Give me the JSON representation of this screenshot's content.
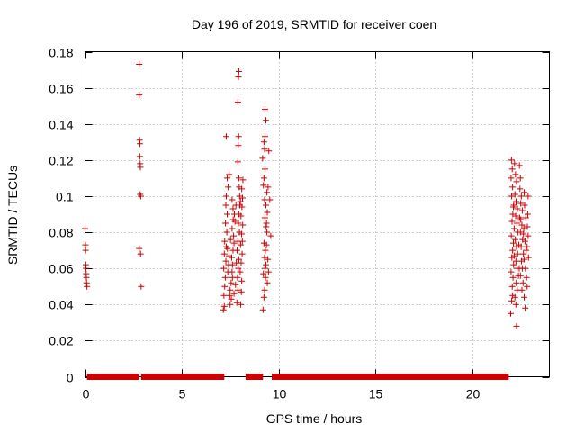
{
  "chart_data": {
    "type": "scatter",
    "title": "Day 196 of 2019, SRMTID for receiver coen",
    "xlabel": "GPS time / hours",
    "ylabel": "SRMTID / TECUs",
    "xlim": [
      0,
      24
    ],
    "ylim": [
      0,
      0.18
    ],
    "grid": true,
    "marker": "+",
    "color": "#cc0000",
    "xticks": [
      {
        "value": 0,
        "label": "0"
      },
      {
        "value": 5,
        "label": "5"
      },
      {
        "value": 10,
        "label": "10"
      },
      {
        "value": 15,
        "label": "15"
      },
      {
        "value": 20,
        "label": "20"
      }
    ],
    "yticks": [
      {
        "value": 0,
        "label": "0"
      },
      {
        "value": 0.02,
        "label": "0.02"
      },
      {
        "value": 0.04,
        "label": "0.04"
      },
      {
        "value": 0.06,
        "label": "0.06"
      },
      {
        "value": 0.08,
        "label": "0.08"
      },
      {
        "value": 0.1,
        "label": "0.1"
      },
      {
        "value": 0.12,
        "label": "0.12"
      },
      {
        "value": 0.14,
        "label": "0.14"
      },
      {
        "value": 0.16,
        "label": "0.16"
      },
      {
        "value": 0.18,
        "label": "0.18"
      }
    ],
    "zero_segments": [
      [
        0.1,
        2.8
      ],
      [
        2.9,
        7.2
      ],
      [
        8.3,
        9.2
      ],
      [
        9.65,
        21.9
      ]
    ],
    "series": [
      {
        "name": "SRMTID",
        "points": [
          [
            0.0,
            0.082
          ],
          [
            0.02,
            0.073
          ],
          [
            0.03,
            0.07
          ],
          [
            0.04,
            0.062
          ],
          [
            0.05,
            0.06
          ],
          [
            0.06,
            0.057
          ],
          [
            0.07,
            0.055
          ],
          [
            0.08,
            0.052
          ],
          [
            0.1,
            0.05
          ],
          [
            2.8,
            0.173
          ],
          [
            2.8,
            0.156
          ],
          [
            2.82,
            0.131
          ],
          [
            2.84,
            0.129
          ],
          [
            2.83,
            0.122
          ],
          [
            2.85,
            0.118
          ],
          [
            2.86,
            0.116
          ],
          [
            2.85,
            0.101
          ],
          [
            2.88,
            0.1
          ],
          [
            2.8,
            0.071
          ],
          [
            2.87,
            0.068
          ],
          [
            2.9,
            0.05
          ],
          [
            7.15,
            0.037
          ],
          [
            7.2,
            0.039
          ],
          [
            7.18,
            0.045
          ],
          [
            7.22,
            0.05
          ],
          [
            7.25,
            0.055
          ],
          [
            7.17,
            0.06
          ],
          [
            7.28,
            0.064
          ],
          [
            7.2,
            0.068
          ],
          [
            7.3,
            0.072
          ],
          [
            7.22,
            0.075
          ],
          [
            7.33,
            0.08
          ],
          [
            7.26,
            0.085
          ],
          [
            7.35,
            0.09
          ],
          [
            7.28,
            0.095
          ],
          [
            7.3,
            0.1
          ],
          [
            7.4,
            0.105
          ],
          [
            7.35,
            0.11
          ],
          [
            7.45,
            0.112
          ],
          [
            7.3,
            0.133
          ],
          [
            7.5,
            0.04
          ],
          [
            7.5,
            0.048
          ],
          [
            7.55,
            0.052
          ],
          [
            7.6,
            0.058
          ],
          [
            7.62,
            0.062
          ],
          [
            7.58,
            0.066
          ],
          [
            7.65,
            0.07
          ],
          [
            7.7,
            0.074
          ],
          [
            7.68,
            0.078
          ],
          [
            7.6,
            0.082
          ],
          [
            7.75,
            0.086
          ],
          [
            7.72,
            0.09
          ],
          [
            7.8,
            0.095
          ],
          [
            7.66,
            0.087
          ],
          [
            7.52,
            0.076
          ],
          [
            7.44,
            0.067
          ],
          [
            7.38,
            0.058
          ],
          [
            7.48,
            0.045
          ],
          [
            7.56,
            0.043
          ],
          [
            7.85,
            0.041
          ],
          [
            7.9,
            0.048
          ],
          [
            7.88,
            0.055
          ],
          [
            7.92,
            0.06
          ],
          [
            7.95,
            0.065
          ],
          [
            7.86,
            0.07
          ],
          [
            7.9,
            0.075
          ],
          [
            7.98,
            0.08
          ],
          [
            7.93,
            0.085
          ],
          [
            7.96,
            0.09
          ],
          [
            8.0,
            0.095
          ],
          [
            7.99,
            0.1
          ],
          [
            7.97,
            0.105
          ],
          [
            7.95,
            0.11
          ],
          [
            7.9,
            0.119
          ],
          [
            7.92,
            0.128
          ],
          [
            7.94,
            0.133
          ],
          [
            7.9,
            0.152
          ],
          [
            7.93,
            0.166
          ],
          [
            7.95,
            0.169
          ],
          [
            8.05,
            0.04
          ],
          [
            8.08,
            0.047
          ],
          [
            8.1,
            0.053
          ],
          [
            8.02,
            0.058
          ],
          [
            8.07,
            0.063
          ],
          [
            8.12,
            0.068
          ],
          [
            8.04,
            0.073
          ],
          [
            8.09,
            0.079
          ],
          [
            8.15,
            0.084
          ],
          [
            8.06,
            0.089
          ],
          [
            8.11,
            0.094
          ],
          [
            8.14,
            0.099
          ],
          [
            8.1,
            0.104
          ],
          [
            8.16,
            0.109
          ],
          [
            8.03,
            0.097
          ],
          [
            8.13,
            0.075
          ],
          [
            7.82,
            0.063
          ],
          [
            7.78,
            0.051
          ],
          [
            7.7,
            0.046
          ],
          [
            7.62,
            0.055
          ],
          [
            7.42,
            0.062
          ],
          [
            7.36,
            0.071
          ],
          [
            7.6,
            0.098
          ],
          [
            7.65,
            0.093
          ],
          [
            9.2,
            0.037
          ],
          [
            9.25,
            0.044
          ],
          [
            9.28,
            0.048
          ],
          [
            9.22,
            0.057
          ],
          [
            9.3,
            0.06
          ],
          [
            9.35,
            0.062
          ],
          [
            9.28,
            0.066
          ],
          [
            9.32,
            0.07
          ],
          [
            9.38,
            0.073
          ],
          [
            9.25,
            0.074
          ],
          [
            9.4,
            0.08
          ],
          [
            9.36,
            0.083
          ],
          [
            9.3,
            0.088
          ],
          [
            9.42,
            0.091
          ],
          [
            9.35,
            0.095
          ],
          [
            9.28,
            0.098
          ],
          [
            9.4,
            0.102
          ],
          [
            9.22,
            0.106
          ],
          [
            9.25,
            0.11
          ],
          [
            9.3,
            0.115
          ],
          [
            9.18,
            0.121
          ],
          [
            9.28,
            0.126
          ],
          [
            9.25,
            0.13
          ],
          [
            9.3,
            0.133
          ],
          [
            9.35,
            0.142
          ],
          [
            9.3,
            0.148
          ],
          [
            9.5,
            0.125
          ],
          [
            9.55,
            0.098
          ],
          [
            9.6,
            0.078
          ],
          [
            9.45,
            0.065
          ],
          [
            9.48,
            0.058
          ],
          [
            9.42,
            0.052
          ],
          [
            9.38,
            0.085
          ],
          [
            9.33,
            0.055
          ],
          [
            9.46,
            0.105
          ],
          [
            22.0,
            0.035
          ],
          [
            22.05,
            0.042
          ],
          [
            22.1,
            0.045
          ],
          [
            22.08,
            0.05
          ],
          [
            22.12,
            0.055
          ],
          [
            22.02,
            0.058
          ],
          [
            22.15,
            0.062
          ],
          [
            22.06,
            0.066
          ],
          [
            22.1,
            0.07
          ],
          [
            22.14,
            0.074
          ],
          [
            22.03,
            0.078
          ],
          [
            22.18,
            0.082
          ],
          [
            22.07,
            0.086
          ],
          [
            22.11,
            0.09
          ],
          [
            22.16,
            0.095
          ],
          [
            22.05,
            0.1
          ],
          [
            22.1,
            0.105
          ],
          [
            22.02,
            0.11
          ],
          [
            22.08,
            0.115
          ],
          [
            22.04,
            0.12
          ],
          [
            22.2,
            0.118
          ],
          [
            22.25,
            0.112
          ],
          [
            22.3,
            0.108
          ],
          [
            22.22,
            0.101
          ],
          [
            22.28,
            0.097
          ],
          [
            22.35,
            0.093
          ],
          [
            22.26,
            0.089
          ],
          [
            22.32,
            0.085
          ],
          [
            22.38,
            0.08
          ],
          [
            22.24,
            0.076
          ],
          [
            22.3,
            0.072
          ],
          [
            22.36,
            0.068
          ],
          [
            22.27,
            0.064
          ],
          [
            22.33,
            0.06
          ],
          [
            22.4,
            0.056
          ],
          [
            22.29,
            0.052
          ],
          [
            22.34,
            0.048
          ],
          [
            22.22,
            0.044
          ],
          [
            22.27,
            0.04
          ],
          [
            22.3,
            0.028
          ],
          [
            22.45,
            0.117
          ],
          [
            22.5,
            0.11
          ],
          [
            22.48,
            0.104
          ],
          [
            22.55,
            0.1
          ],
          [
            22.52,
            0.096
          ],
          [
            22.6,
            0.092
          ],
          [
            22.46,
            0.088
          ],
          [
            22.58,
            0.084
          ],
          [
            22.5,
            0.08
          ],
          [
            22.62,
            0.076
          ],
          [
            22.54,
            0.072
          ],
          [
            22.66,
            0.068
          ],
          [
            22.56,
            0.064
          ],
          [
            22.6,
            0.06
          ],
          [
            22.5,
            0.056
          ],
          [
            22.64,
            0.052
          ],
          [
            22.58,
            0.048
          ],
          [
            22.7,
            0.044
          ],
          [
            22.75,
            0.038
          ],
          [
            22.7,
            0.102
          ],
          [
            22.72,
            0.095
          ],
          [
            22.78,
            0.088
          ],
          [
            22.68,
            0.082
          ],
          [
            22.74,
            0.075
          ],
          [
            22.8,
            0.07
          ],
          [
            22.69,
            0.065
          ],
          [
            22.76,
            0.06
          ],
          [
            22.82,
            0.055
          ],
          [
            22.85,
            0.05
          ],
          [
            22.9,
            0.1
          ],
          [
            22.88,
            0.09
          ],
          [
            22.86,
            0.083
          ],
          [
            22.9,
            0.078
          ],
          [
            22.85,
            0.072
          ],
          [
            22.92,
            0.066
          ],
          [
            22.18,
            0.067
          ],
          [
            22.42,
            0.073
          ],
          [
            22.14,
            0.094
          ],
          [
            22.44,
            0.06
          ],
          [
            22.52,
            0.087
          ],
          [
            22.66,
            0.079
          ]
        ]
      }
    ]
  }
}
